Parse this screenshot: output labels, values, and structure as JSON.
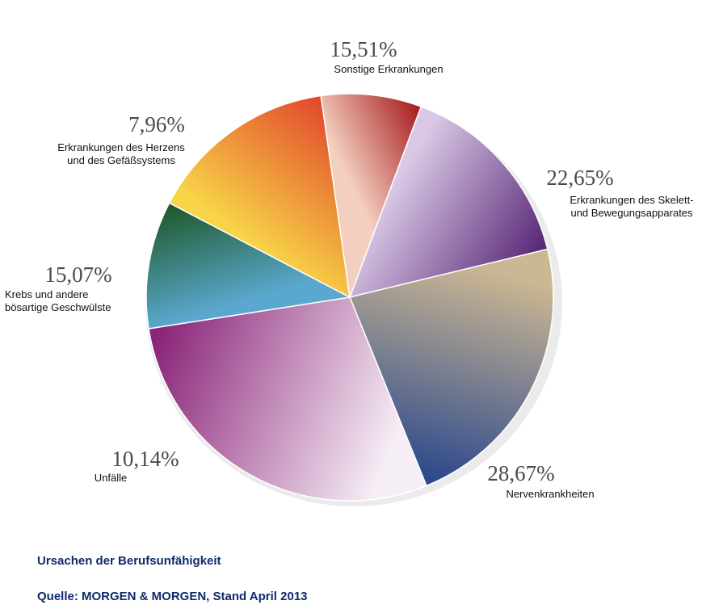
{
  "chart_data": {
    "type": "pie",
    "slices": [
      {
        "label": "Sonstige Erkrankungen",
        "value": 15.51,
        "value_label": "15,51%",
        "colors": [
          "#d9c9e6",
          "#5b2a78"
        ]
      },
      {
        "label": "Erkrankungen des Skelett- und Bewegungsapparates",
        "label_lines": [
          "Erkrankungen des Skelett-",
          "und Bewegungsapparates"
        ],
        "value": 22.65,
        "value_label": "22,65%",
        "colors": [
          "#cbb793",
          "#2e4a8c"
        ]
      },
      {
        "label": "Nervenkrankheiten",
        "value": 28.67,
        "value_label": "28,67%",
        "colors": [
          "#f6eef6",
          "#8a2478"
        ]
      },
      {
        "label": "Unfälle",
        "value": 10.14,
        "value_label": "10,14%",
        "colors": [
          "#5aa8cf",
          "#1f5a2e"
        ]
      },
      {
        "label": "Krebs und andere bösartige Geschwülste",
        "label_lines": [
          "Krebs und andere",
          "bösartige Geschwülste"
        ],
        "value": 15.07,
        "value_label": "15,07%",
        "colors": [
          "#f8d548",
          "#e24c2c"
        ]
      },
      {
        "label": "Erkrankungen des Herzens und des Gefäßsystems",
        "label_lines": [
          "Erkrankungen des Herzens",
          "und des Gefäßsystems"
        ],
        "value": 7.96,
        "value_label": "7,96%",
        "colors": [
          "#f3cfc0",
          "#a81f22"
        ]
      }
    ]
  },
  "caption": {
    "title": "Ursachen der Berufsunfähigkeit",
    "source": "Quelle: MORGEN & MORGEN, Stand April 2013"
  }
}
